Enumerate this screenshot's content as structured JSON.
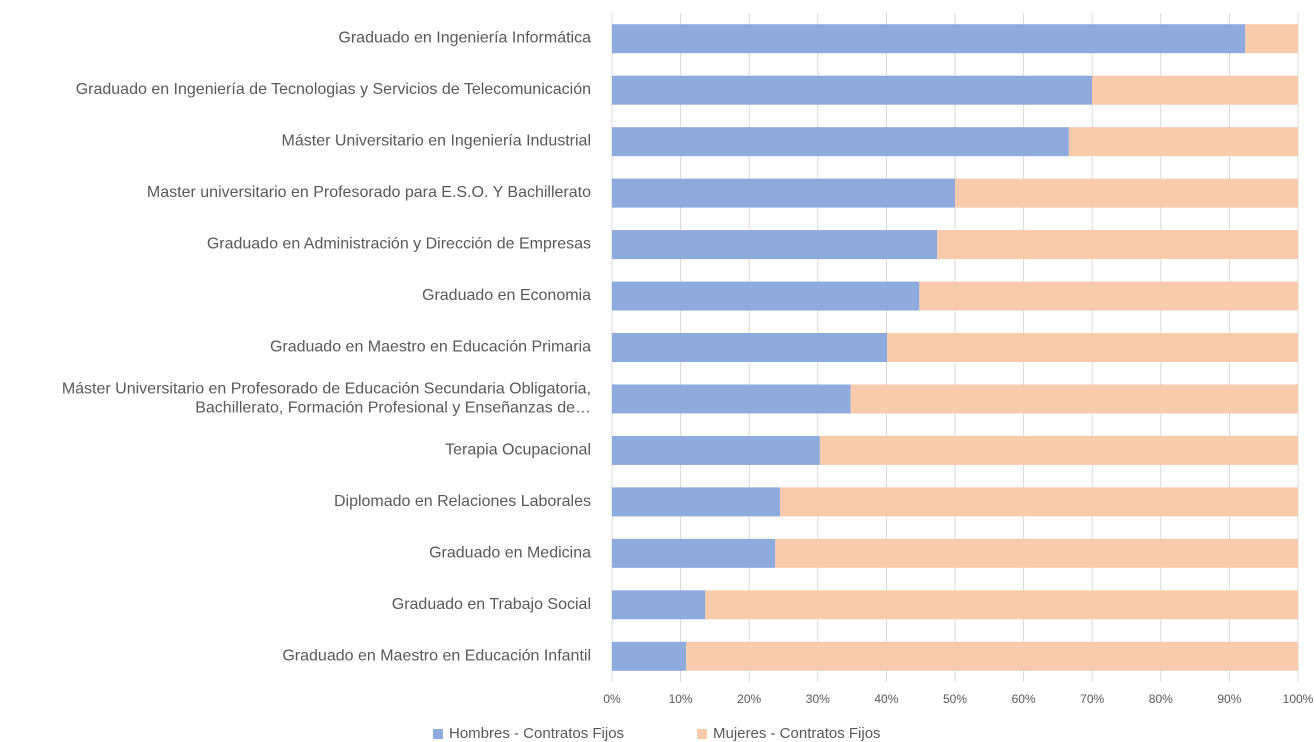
{
  "chart_data": {
    "type": "stacked_barh",
    "categories": [
      "Graduado en Ingeniería Informática",
      "Graduado en Ingeniería de Tecnologias y Servicios de Telecomunicación",
      "Máster Universitario en Ingeniería Industrial",
      "Master universitario en Profesorado para E.S.O. Y Bachillerato",
      "Graduado en Administración y Dirección de Empresas",
      "Graduado en Economia",
      "Graduado en Maestro en Educación Primaria",
      "Máster Universitario en Profesorado de Educación Secundaria Obligatoria, Bachillerato, Formación Profesional y Enseñanzas de…",
      "Terapia Ocupacional",
      "Diplomado en Relaciones Laborales",
      "Graduado en Medicina",
      "Graduado en Trabajo Social",
      "Graduado en Maestro en Educación Infantil"
    ],
    "series": [
      {
        "name": "Hombres - Contratos Fijos",
        "color": "#8faadc",
        "values": [
          92.3,
          70,
          66.6,
          50,
          47.4,
          44.8,
          40.1,
          34.8,
          30.3,
          24.5,
          23.8,
          13.6,
          10.8
        ]
      },
      {
        "name": "Mujeres - Contratos Fijos",
        "color": "#f8cbad",
        "values": [
          7.7,
          30,
          33.4,
          50,
          52.6,
          55.2,
          59.9,
          65.2,
          69.7,
          75.5,
          76.2,
          86.4,
          89.2
        ]
      }
    ],
    "xlim": [
      0,
      100
    ],
    "xticks": [
      {
        "value": 0,
        "label": "0%"
      },
      {
        "value": 10,
        "label": "10%"
      },
      {
        "value": 20,
        "label": "20%"
      },
      {
        "value": 30,
        "label": "30%"
      },
      {
        "value": 40,
        "label": "40%"
      },
      {
        "value": 50,
        "label": "50%"
      },
      {
        "value": 60,
        "label": "60%"
      },
      {
        "value": 70,
        "label": "70%"
      },
      {
        "value": 80,
        "label": "80%"
      },
      {
        "value": 90,
        "label": "90%"
      },
      {
        "value": 100,
        "label": "100%"
      }
    ],
    "grid": true,
    "legend": "bottom"
  }
}
